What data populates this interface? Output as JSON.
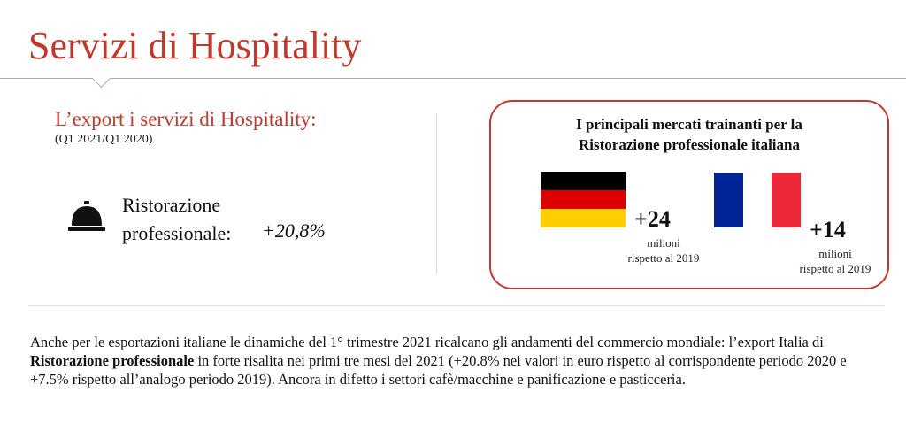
{
  "page": {
    "title": "Servizi di Hospitality"
  },
  "left_panel": {
    "heading": "L’export i servizi di Hospitality:",
    "period": "(Q1 2021/Q1 2020)",
    "metric_icon": "service-bell-icon",
    "metric_label_line1": "Ristorazione",
    "metric_label_line2": "professionale:",
    "metric_value": "+20,8%"
  },
  "markets_card": {
    "title_line1": "I principali mercati trainanti per la",
    "title_line2": "Ristorazione professionale italiana",
    "markets": [
      {
        "flag": "germany-flag",
        "flag_colors": [
          "#000000",
          "#dd0000",
          "#ffce00"
        ],
        "value": "+24",
        "unit": "milioni",
        "note": "rispetto al 2019"
      },
      {
        "flag": "france-flag",
        "flag_colors": [
          "#002395",
          "#ffffff",
          "#ed2939"
        ],
        "value": "+14",
        "unit": "milioni",
        "note": "rispetto al 2019"
      }
    ]
  },
  "body": {
    "p1": "Anche per le esportazioni italiane le dinamiche del 1° trimestre 2021 ricalcano gli andamenti del commercio mondiale: l’export Italia di ",
    "p_bold": "Ristorazione professionale",
    "p2": " in forte risalita nei primi tre mesi del 2021 (+20.8% nei valori in euro rispetto al corrispondente periodo 2020 e +7.5% rispetto all’analogo periodo 2019). Ancora in difetto i settori cafè/macchine e panificazione e pasticceria."
  },
  "colors": {
    "accent": "#c0392b"
  }
}
